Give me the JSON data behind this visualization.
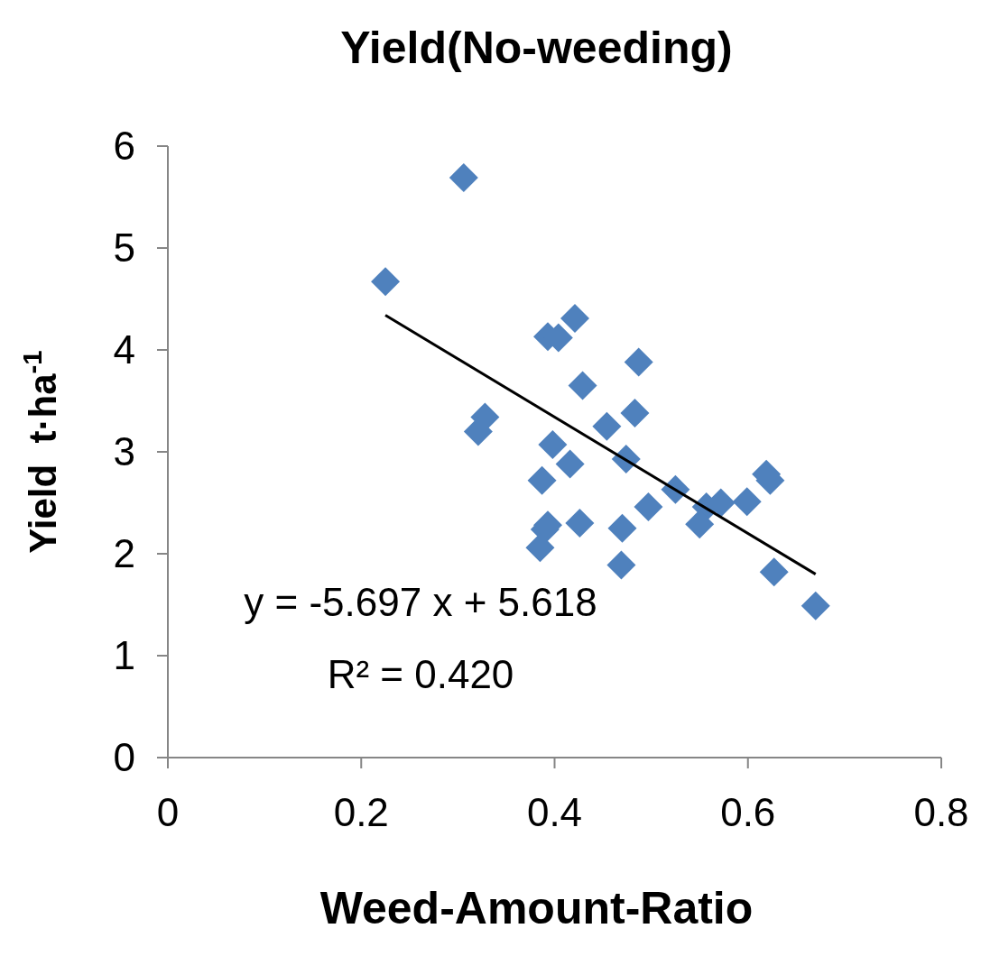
{
  "chart_data": {
    "type": "scatter",
    "title": "Yield(No-weeding)",
    "xlabel": "Weed-Amount-Ratio",
    "ylabel": "Yield  t·ha$^{-1}$",
    "xlim": [
      0,
      0.8
    ],
    "xticks": [
      0,
      0.2,
      0.4,
      0.6,
      0.8
    ],
    "ylim": [
      0,
      6
    ],
    "yticks": [
      0,
      1,
      2,
      3,
      4,
      5,
      6
    ],
    "grid": false,
    "marker": "diamond",
    "series": [
      {
        "color": "#4f81bd",
        "x": [
          0.306,
          0.225,
          0.421,
          0.393,
          0.404,
          0.487,
          0.429,
          0.328,
          0.321,
          0.483,
          0.454,
          0.398,
          0.416,
          0.474,
          0.387,
          0.393,
          0.39,
          0.385,
          0.426,
          0.47,
          0.469,
          0.525,
          0.497,
          0.557,
          0.55,
          0.572,
          0.599,
          0.619,
          0.623,
          0.627,
          0.67
        ],
        "values": [
          5.69,
          4.67,
          4.31,
          4.13,
          4.12,
          3.88,
          3.65,
          3.34,
          3.2,
          3.38,
          3.25,
          3.07,
          2.88,
          2.93,
          2.72,
          2.28,
          2.24,
          2.06,
          2.3,
          2.25,
          1.89,
          2.63,
          2.46,
          2.46,
          2.29,
          2.5,
          2.51,
          2.78,
          2.72,
          1.82,
          1.49
        ]
      },
      {
        "type": "line",
        "color": "#000000",
        "line_style": "solid",
        "marker": "none",
        "x": [
          0.225,
          0.67
        ],
        "values": [
          4.34,
          1.8
        ]
      }
    ],
    "annotations": [
      "y = -5.697 x + 5.618",
      "R² = 0.420"
    ]
  }
}
